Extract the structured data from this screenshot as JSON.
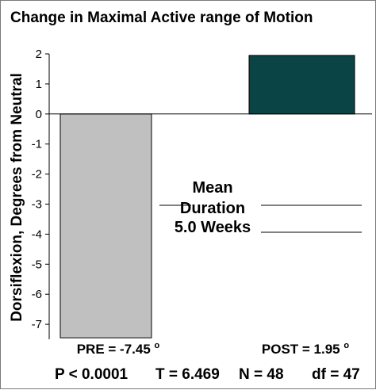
{
  "chart_data": {
    "type": "bar",
    "title": "Change in Maximal Active range of Motion",
    "ylabel": "Dorsiflexion, Degrees from Neutral",
    "xlabel": "",
    "ylim": [
      -7.5,
      2
    ],
    "yticks": [
      "2",
      "1",
      "0",
      "-1",
      "-2",
      "-3",
      "-4",
      "-5",
      "-6",
      "-7"
    ],
    "grid": false,
    "categories": [
      "PRE",
      "POST"
    ],
    "values": [
      -7.45,
      1.95
    ],
    "category_labels": [
      "PRE = -7.45",
      "POST = 1.95"
    ],
    "degree_symbol": "o",
    "bar_colors": [
      "#c0c0c0",
      "#0b4444"
    ],
    "annotation_lines": [
      "Mean",
      "Duration",
      "5.0 Weeks"
    ],
    "stats": [
      "P < 0.0001",
      "T = 6.469",
      "N = 48",
      "df = 47"
    ]
  }
}
